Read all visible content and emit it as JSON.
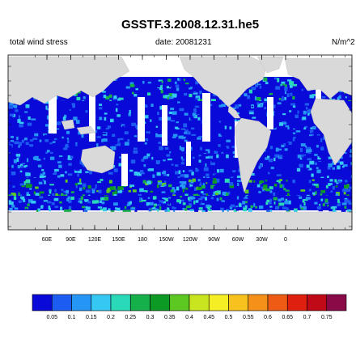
{
  "chart_data": {
    "type": "heatmap",
    "title": "GSSTF.3.2008.12.31.he5",
    "subtitle_left": "total wind stress",
    "subtitle_center": "date: 20081231",
    "subtitle_right": "N/m^2",
    "x_tick_labels": [
      "60E",
      "90E",
      "120E",
      "150E",
      "180",
      "150W",
      "120W",
      "90W",
      "60W",
      "30W",
      "0"
    ],
    "colorbar_labels": [
      "0.05",
      "0.1",
      "0.15",
      "0.2",
      "0.25",
      "0.3",
      "0.35",
      "0.4",
      "0.45",
      "0.5",
      "0.55",
      "0.6",
      "0.65",
      "0.7",
      "0.75"
    ],
    "colorbar_colors": [
      "#0a0ad8",
      "#1c5cf0",
      "#2596f5",
      "#35c8f2",
      "#2ad9b8",
      "#16b04a",
      "#0c9a24",
      "#5cc821",
      "#c8e51f",
      "#f5ee24",
      "#f7c21d",
      "#f59018",
      "#ee5b14",
      "#e0200f",
      "#c00a18",
      "#8a0a48"
    ],
    "land_color": "#d9d9d9",
    "ocean_background_color": "#ffffff"
  }
}
